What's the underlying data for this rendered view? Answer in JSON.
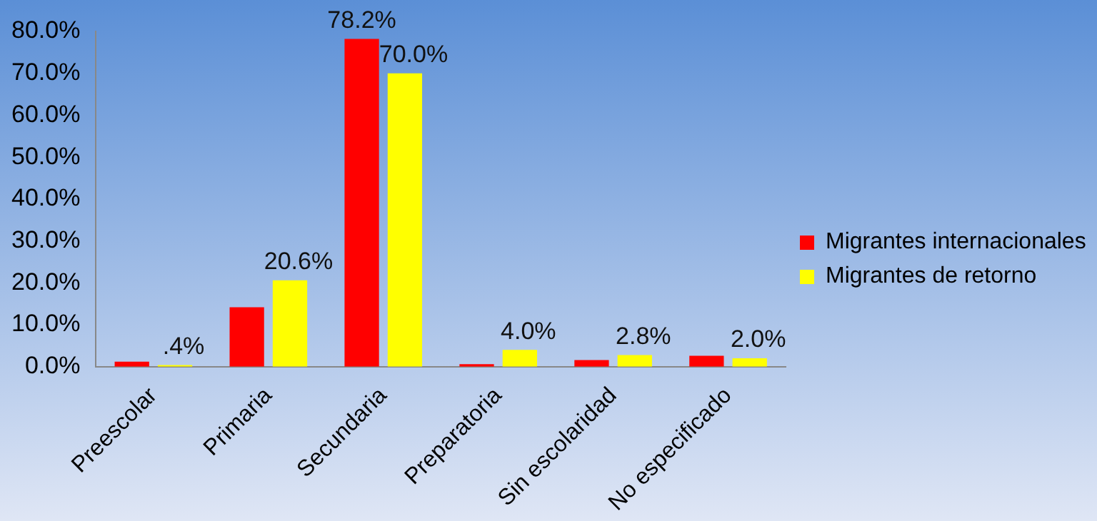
{
  "chart_data": {
    "type": "bar",
    "categories": [
      "Preescolar",
      "Primaria",
      "Secundaria",
      "Preparatoria",
      "Sin escolaridad",
      "No especificado"
    ],
    "series": [
      {
        "name": "Migrantes internacionales",
        "color": "#ff0000",
        "values": [
          1.2,
          14.2,
          78.2,
          0.6,
          1.6,
          2.6
        ],
        "value_labels": [
          null,
          null,
          "78.2%",
          null,
          null,
          null
        ]
      },
      {
        "name": "Migrantes de retorno",
        "color": "#ffff00",
        "values": [
          0.4,
          20.6,
          70.0,
          4.0,
          2.8,
          2.0
        ],
        "value_labels": [
          ".4%",
          "20.6%",
          "70.0%",
          "4.0%",
          "2.8%",
          "2.0%"
        ]
      }
    ],
    "ylim": [
      0,
      80
    ],
    "yticks": [
      {
        "value": 0,
        "label": "0.0%"
      },
      {
        "value": 10,
        "label": "10.0%"
      },
      {
        "value": 20,
        "label": "20.0%"
      },
      {
        "value": 30,
        "label": "30.0%"
      },
      {
        "value": 40,
        "label": "40.0%"
      },
      {
        "value": 50,
        "label": "50.0%"
      },
      {
        "value": 60,
        "label": "60.0%"
      },
      {
        "value": 70,
        "label": "70.0%"
      },
      {
        "value": 80,
        "label": "80.0%"
      }
    ],
    "grid": false,
    "legend": "right"
  }
}
